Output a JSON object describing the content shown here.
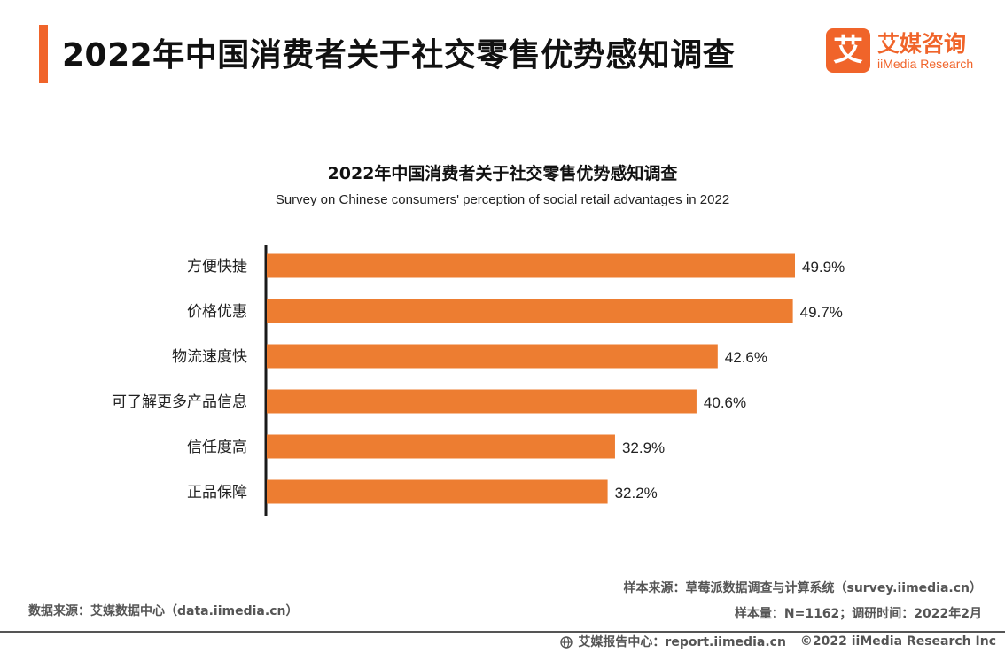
{
  "header": {
    "title": "2022年中国消费者关于社交零售优势感知调查",
    "accent_color": "#f0642a"
  },
  "logo": {
    "mark": "艾",
    "cn": "艾媒咨询",
    "en": "iiMedia Research"
  },
  "chart_data": {
    "type": "bar",
    "orientation": "horizontal",
    "title": "2022年中国消费者关于社交零售优势感知调查",
    "subtitle": "Survey on Chinese consumers' perception of social retail advantages in 2022",
    "categories": [
      "方便快捷",
      "价格优惠",
      "物流速度快",
      "可了解更多产品信息",
      "信任度高",
      "正品保障"
    ],
    "values": [
      49.9,
      49.7,
      42.6,
      40.6,
      32.9,
      32.2
    ],
    "value_labels": [
      "49.9%",
      "49.7%",
      "42.6%",
      "40.6%",
      "32.9%",
      "32.2%"
    ],
    "unit": "%",
    "xlim": [
      0,
      50
    ],
    "bar_color": "#ed7d31",
    "grid": false,
    "legend": "none"
  },
  "footer": {
    "data_source": "数据来源：艾媒数据中心（data.iimedia.cn）",
    "sample_source": "样本来源：草莓派数据调查与计算系统（survey.iimedia.cn）",
    "sample_info": "样本量：N=1162；调研时间：2022年2月",
    "report_center": "艾媒报告中心：report.iimedia.cn",
    "copyright": "©2022  iiMedia Research  Inc",
    "globe_icon": "globe-icon"
  }
}
